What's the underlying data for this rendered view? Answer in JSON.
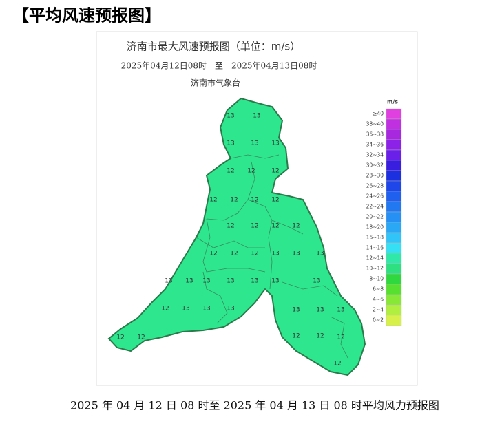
{
  "header": {
    "title": "【平均风速预报图】"
  },
  "map": {
    "title": "济南市最大风速预报图（单位：m/s）",
    "subtitle": "2025年04月12日08时　至　2025年04月13日08时",
    "agency": "济南市气象台",
    "fill_color": "#2de68e",
    "region_labels": [
      13,
      13,
      13,
      13,
      13,
      12,
      12,
      12,
      12,
      12,
      12,
      12,
      12,
      12,
      12,
      12,
      12,
      12,
      12,
      13,
      13,
      13,
      13,
      13,
      13,
      13,
      13,
      13,
      13,
      12,
      13,
      13,
      13,
      13,
      13,
      13,
      12,
      12,
      12,
      12,
      12,
      12
    ]
  },
  "legend": {
    "unit": "m/s",
    "entries": [
      {
        "label": "≥40",
        "color": "#e040e0"
      },
      {
        "label": "38~40",
        "color": "#c030e0"
      },
      {
        "label": "36~38",
        "color": "#a828e0"
      },
      {
        "label": "34~36",
        "color": "#8c22e8"
      },
      {
        "label": "32~34",
        "color": "#6a20e8"
      },
      {
        "label": "30~32",
        "color": "#3a1ee0"
      },
      {
        "label": "28~30",
        "color": "#1c30e0"
      },
      {
        "label": "26~28",
        "color": "#1e46e8"
      },
      {
        "label": "24~26",
        "color": "#2060ee"
      },
      {
        "label": "22~24",
        "color": "#2278f0"
      },
      {
        "label": "20~22",
        "color": "#2690f4"
      },
      {
        "label": "18~20",
        "color": "#2aa8f6"
      },
      {
        "label": "16~18",
        "color": "#30c4f8"
      },
      {
        "label": "14~16",
        "color": "#36e0f4"
      },
      {
        "label": "12~14",
        "color": "#30e8a8"
      },
      {
        "label": "10~12",
        "color": "#2ee080"
      },
      {
        "label": "8~10",
        "color": "#30d840"
      },
      {
        "label": "6~8",
        "color": "#58e030"
      },
      {
        "label": "4~6",
        "color": "#88e838"
      },
      {
        "label": "2~4",
        "color": "#b0ee40"
      },
      {
        "label": "0~2",
        "color": "#d8f04a"
      }
    ]
  },
  "caption": "2025 年 04 月 12 日 08 时至 2025 年 04 月 13 日 08 时平均风力预报图"
}
